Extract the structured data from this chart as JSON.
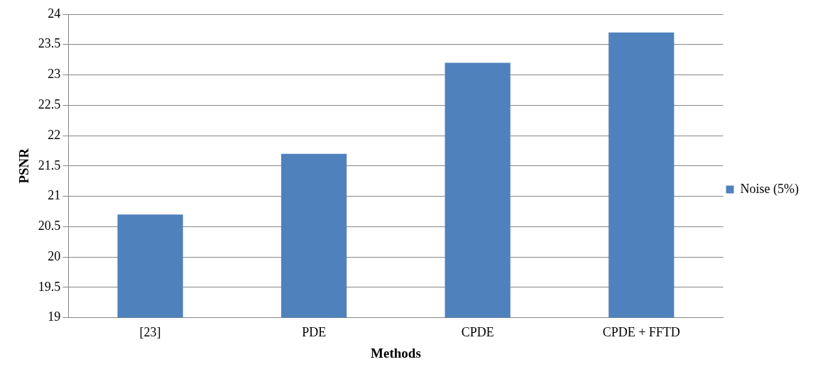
{
  "chart_data": {
    "type": "bar",
    "categories": [
      "[23]",
      "PDE",
      "CPDE",
      "CPDE + FFTD"
    ],
    "series": [
      {
        "name": "Noise (5%)",
        "color": "#4f81bd",
        "values": [
          20.7,
          21.7,
          23.2,
          23.7
        ]
      }
    ],
    "xlabel": "Methods",
    "ylabel": "PSNR",
    "ylim": [
      19,
      24
    ],
    "yticks": [
      19,
      19.5,
      20,
      20.5,
      21,
      21.5,
      22,
      22.5,
      23,
      23.5,
      24
    ],
    "grid": "y",
    "legend": "right"
  }
}
